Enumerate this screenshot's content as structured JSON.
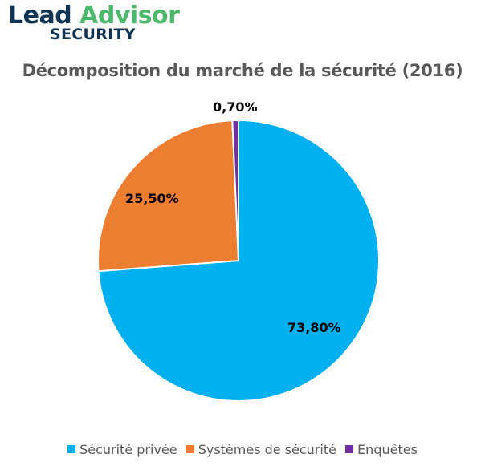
{
  "logo": {
    "word1": "Lead",
    "word2": "Advisor",
    "subtitle": "SECURITY",
    "colors": {
      "lead": "#0e3553",
      "advisor": "#4cb86b"
    }
  },
  "chart_data": {
    "type": "pie",
    "title": "Décomposition du marché de la sécurité (2016)",
    "categories": [
      "Sécurité privée",
      "Systèmes de sécurité",
      "Enquêtes"
    ],
    "values": [
      73.8,
      25.5,
      0.7
    ],
    "data_labels": [
      "73,80%",
      "25,50%",
      "0,70%"
    ],
    "colors": [
      "#00b0f0",
      "#ed7d31",
      "#7030a0"
    ],
    "start_angle": "12 o'clock, clockwise",
    "legend_position": "bottom"
  },
  "legend": {
    "items": [
      {
        "label": "Sécurité privée",
        "color": "#00b0f0"
      },
      {
        "label": "Systèmes de sécurité",
        "color": "#ed7d31"
      },
      {
        "label": "Enquêtes",
        "color": "#7030a0"
      }
    ]
  }
}
